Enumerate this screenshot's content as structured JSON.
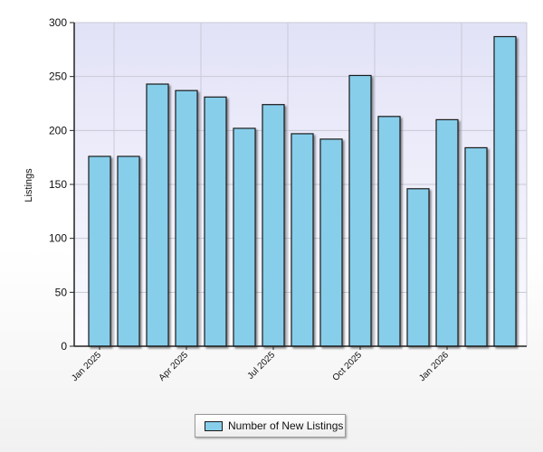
{
  "chart_data": {
    "type": "bar",
    "categories": [
      "Jan 2025",
      "Feb 2025",
      "Mar 2025",
      "Apr 2025",
      "May 2025",
      "Jun 2025",
      "Jul 2025",
      "Aug 2025",
      "Sep 2025",
      "Oct 2025",
      "Nov 2025",
      "Dec 2025",
      "Jan 2026",
      "Feb 2026",
      "Mar 2026"
    ],
    "x_tick_labels": [
      "Jan 2025",
      "Apr 2025",
      "Jul 2025",
      "Oct 2025",
      "Jan 2026"
    ],
    "series": [
      {
        "name": "Number of New Listings",
        "values": [
          176,
          176,
          243,
          237,
          231,
          202,
          224,
          197,
          192,
          251,
          213,
          146,
          210,
          184,
          287
        ]
      }
    ],
    "title": "",
    "xlabel": "",
    "ylabel": "Listings",
    "ylim": [
      0,
      300
    ],
    "yticks": [
      0,
      50,
      100,
      150,
      200,
      250,
      300
    ],
    "grid": true,
    "legend_position": "bottom-center"
  },
  "colors": {
    "bar_fill": "#87ceeb",
    "bar_stroke": "#1a1a1a",
    "plot_bg_top": "#e2e2f7",
    "plot_bg_bottom": "#fbfbff",
    "grid": "#c9c9d6"
  }
}
